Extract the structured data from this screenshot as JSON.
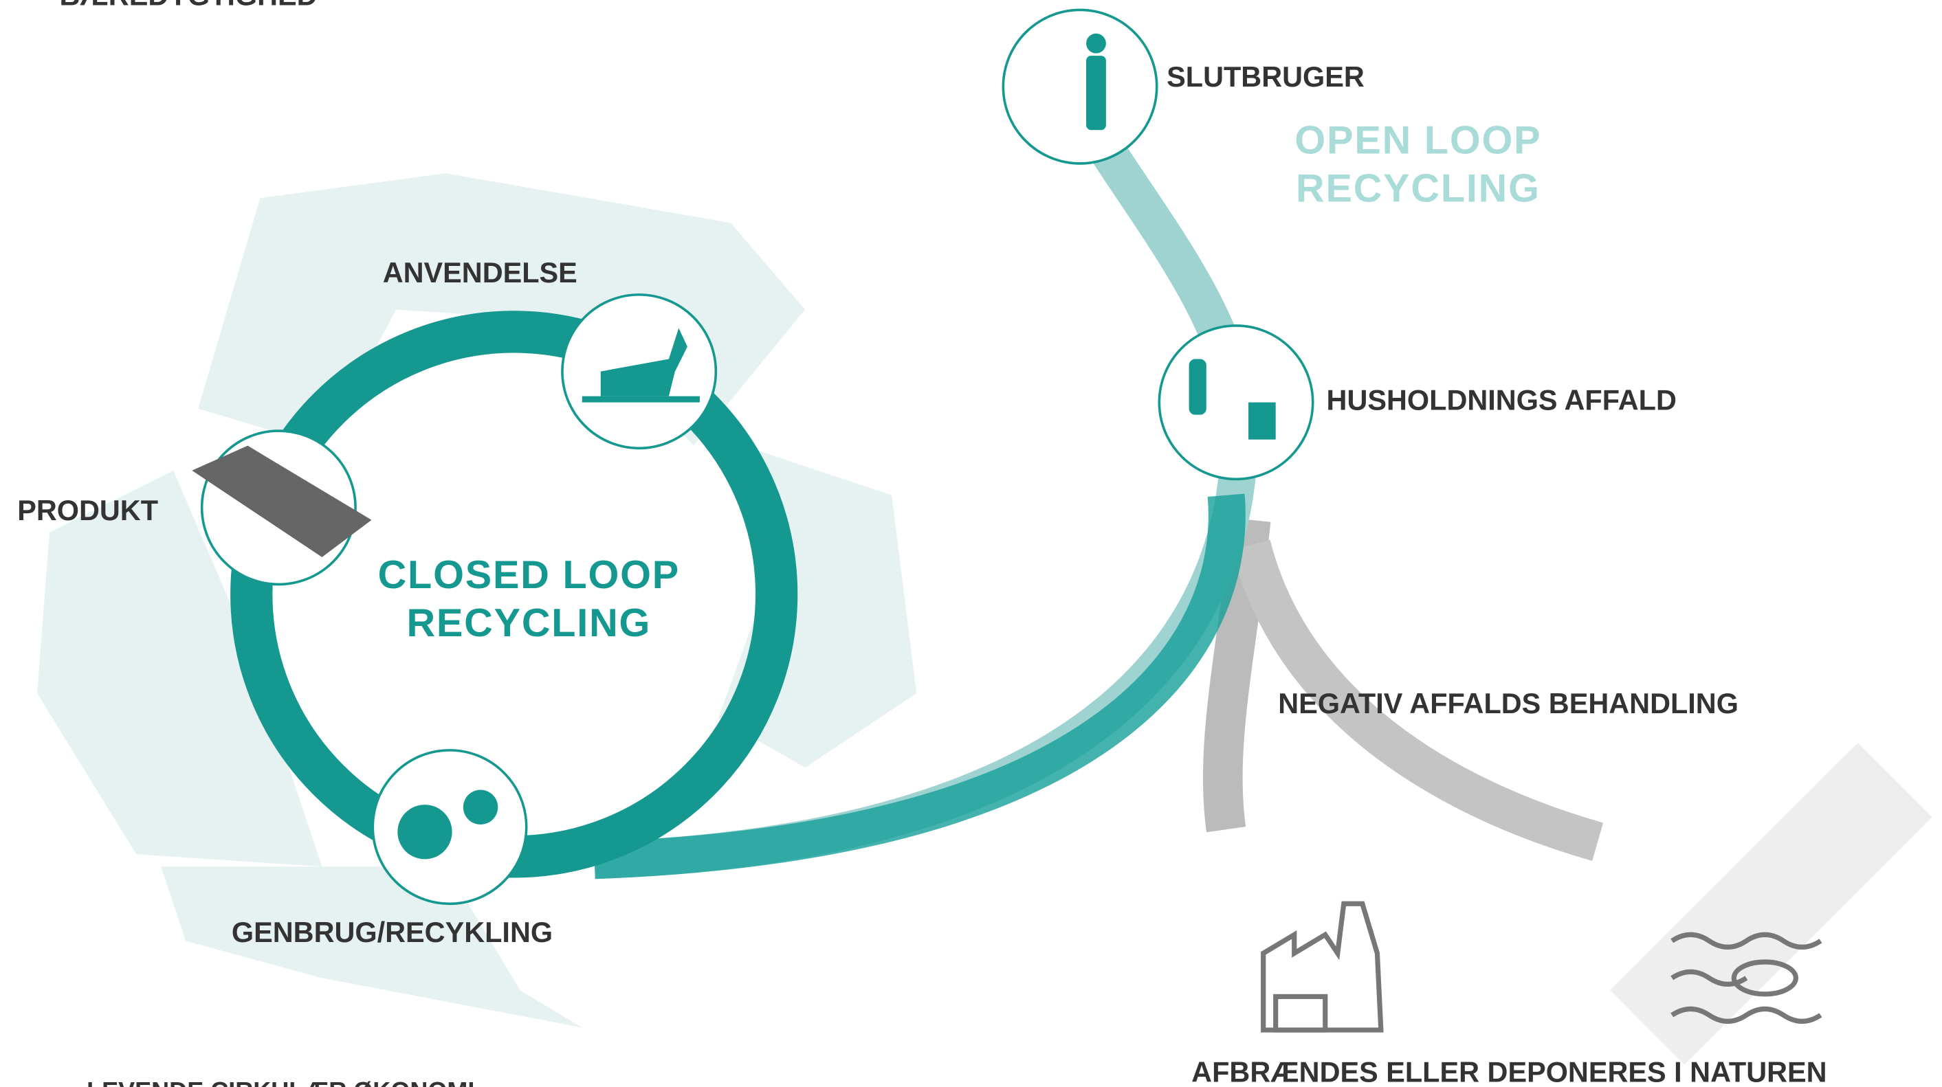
{
  "header": {
    "title": "BÆREDYGTIGHED"
  },
  "open_loop": {
    "line1": "OPEN LOOP",
    "line2": "RECYCLING"
  },
  "closed_loop": {
    "line1": "CLOSED LOOP",
    "line2": "RECYCLING"
  },
  "nodes": [
    {
      "label": "SLUTBRUGER"
    },
    {
      "label": "HUSHOLDNINGS AFFALD"
    },
    {
      "label": "ANVENDELSE"
    },
    {
      "label": "PRODUKT"
    },
    {
      "label": "GENBRUG/RECYKLING"
    }
  ],
  "negative": {
    "label": "NEGATIV AFFALDS BEHANDLING"
  },
  "outcome": {
    "label": "AFBRÆNDES ELLER DEPONERES I NATUREN"
  },
  "footer": {
    "text": "LEVENDE CIRKULÆR ØKONOMI"
  }
}
